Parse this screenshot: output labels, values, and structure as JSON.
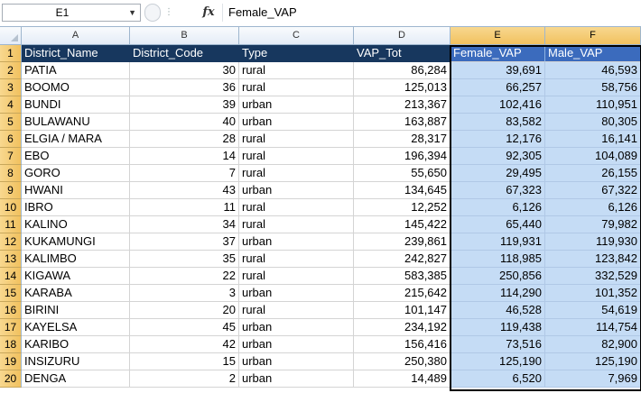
{
  "formula_bar": {
    "name_box": "E1",
    "fx_label": "fx",
    "content": "Female_VAP"
  },
  "columns": [
    "A",
    "B",
    "C",
    "D",
    "E",
    "F"
  ],
  "selected_columns": [
    "E",
    "F"
  ],
  "header_row": [
    "District_Name",
    "District_Code",
    "Type",
    "VAP_Tot",
    "Female_VAP",
    "Male_VAP"
  ],
  "rows": [
    {
      "n": "1"
    },
    {
      "n": "2",
      "d": [
        "PATIA",
        "30",
        "rural",
        "86,284",
        "39,691",
        "46,593"
      ]
    },
    {
      "n": "3",
      "d": [
        "BOOMO",
        "36",
        "rural",
        "125,013",
        "66,257",
        "58,756"
      ]
    },
    {
      "n": "4",
      "d": [
        "BUNDI",
        "39",
        "urban",
        "213,367",
        "102,416",
        "110,951"
      ]
    },
    {
      "n": "5",
      "d": [
        "BULAWANU",
        "40",
        "urban",
        "163,887",
        "83,582",
        "80,305"
      ]
    },
    {
      "n": "6",
      "d": [
        "ELGIA / MARA",
        "28",
        "rural",
        "28,317",
        "12,176",
        "16,141"
      ]
    },
    {
      "n": "7",
      "d": [
        "EBO",
        "14",
        "rural",
        "196,394",
        "92,305",
        "104,089"
      ]
    },
    {
      "n": "8",
      "d": [
        "GORO",
        "7",
        "rural",
        "55,650",
        "29,495",
        "26,155"
      ]
    },
    {
      "n": "9",
      "d": [
        "HWANI",
        "43",
        "urban",
        "134,645",
        "67,323",
        "67,322"
      ]
    },
    {
      "n": "10",
      "d": [
        "IBRO",
        "11",
        "rural",
        "12,252",
        "6,126",
        "6,126"
      ]
    },
    {
      "n": "11",
      "d": [
        "KALINO",
        "34",
        "rural",
        "145,422",
        "65,440",
        "79,982"
      ]
    },
    {
      "n": "12",
      "d": [
        "KUKAMUNGI",
        "37",
        "urban",
        "239,861",
        "119,931",
        "119,930"
      ]
    },
    {
      "n": "13",
      "d": [
        "KALIMBO",
        "35",
        "rural",
        "242,827",
        "118,985",
        "123,842"
      ]
    },
    {
      "n": "14",
      "d": [
        "KIGAWA",
        "22",
        "rural",
        "583,385",
        "250,856",
        "332,529"
      ]
    },
    {
      "n": "15",
      "d": [
        "KARABA",
        "3",
        "urban",
        "215,642",
        "114,290",
        "101,352"
      ]
    },
    {
      "n": "16",
      "d": [
        "BIRINI",
        "20",
        "rural",
        "101,147",
        "46,528",
        "54,619"
      ]
    },
    {
      "n": "17",
      "d": [
        "KAYELSA",
        "45",
        "urban",
        "234,192",
        "119,438",
        "114,754"
      ]
    },
    {
      "n": "18",
      "d": [
        "KARIBO",
        "42",
        "urban",
        "156,416",
        "73,516",
        "82,900"
      ]
    },
    {
      "n": "19",
      "d": [
        "INSIZURU",
        "15",
        "urban",
        "250,380",
        "125,190",
        "125,190"
      ]
    },
    {
      "n": "20",
      "d": [
        "DENGA",
        "2",
        "urban",
        "14,489",
        "6,520",
        "7,969"
      ]
    }
  ],
  "colors": {
    "header_bg": "#17375e",
    "selected_header_bg": "#3b6bbd",
    "selection_fill": "#c5dcf5",
    "heading_highlight": "#f1c15f"
  }
}
